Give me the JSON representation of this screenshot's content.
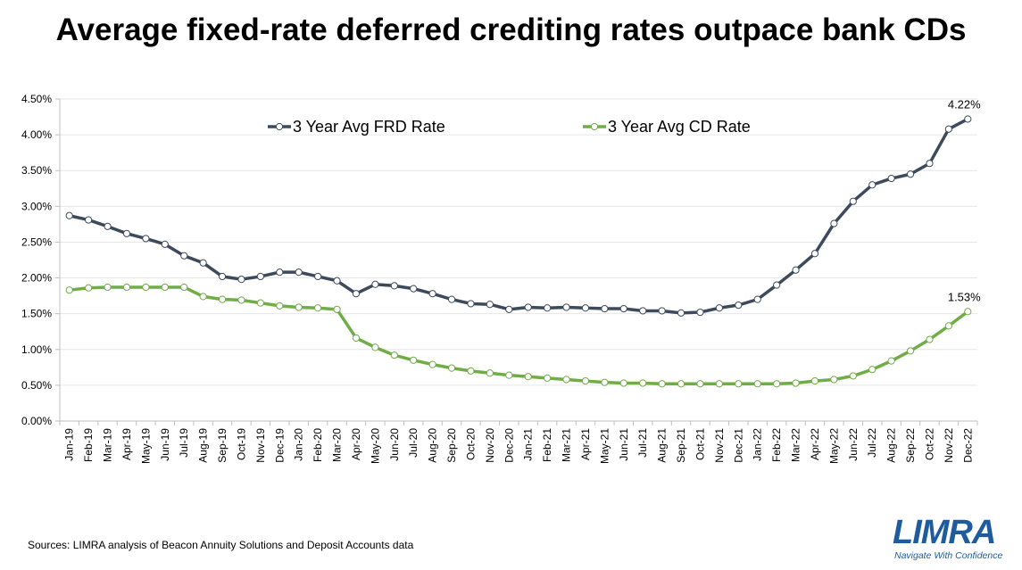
{
  "colors": {
    "frd": "#3d4a5c",
    "cd": "#70ad47",
    "grid": "#e6e6e6",
    "axis": "#bfbfbf",
    "brand": "#1f5c9e"
  },
  "footer": {
    "source": "Sources: LIMRA analysis of Beacon Annuity Solutions and Deposit Accounts data"
  },
  "logo": {
    "word": "LIMRA",
    "tagline": "Navigate With Confidence"
  },
  "chart_data": {
    "type": "line",
    "title": "Average fixed-rate deferred crediting rates outpace bank CDs",
    "xlabel": "",
    "ylabel": "",
    "ylim": [
      0,
      4.5
    ],
    "y_ticks": [
      "0.00%",
      "0.50%",
      "1.00%",
      "1.50%",
      "2.00%",
      "2.50%",
      "3.00%",
      "3.50%",
      "4.00%",
      "4.50%"
    ],
    "grid": true,
    "legend_position": "top",
    "categories": [
      "Jan-19",
      "Feb-19",
      "Mar-19",
      "Apr-19",
      "May-19",
      "Jun-19",
      "Jul-19",
      "Aug-19",
      "Sep-19",
      "Oct-19",
      "Nov-19",
      "Dec-19",
      "Jan-20",
      "Feb-20",
      "Mar-20",
      "Apr-20",
      "May-20",
      "Jun-20",
      "Jul-20",
      "Aug-20",
      "Sep-20",
      "Oct-20",
      "Nov-20",
      "Dec-20",
      "Jan-21",
      "Feb-21",
      "Mar-21",
      "Apr-21",
      "May-21",
      "Jun-21",
      "Jul-21",
      "Aug-21",
      "Sep-21",
      "Oct-21",
      "Nov-21",
      "Dec-21",
      "Jan-22",
      "Feb-22",
      "Mar-22",
      "Apr-22",
      "May-22",
      "Jun-22",
      "Jul-22",
      "Aug-22",
      "Sep-22",
      "Oct-22",
      "Nov-22",
      "Dec-22"
    ],
    "series": [
      {
        "name": "3 Year Avg FRD Rate",
        "values": [
          2.87,
          2.81,
          2.72,
          2.62,
          2.55,
          2.47,
          2.31,
          2.21,
          2.02,
          1.98,
          2.02,
          2.08,
          2.08,
          2.02,
          1.96,
          1.78,
          1.91,
          1.89,
          1.85,
          1.78,
          1.7,
          1.64,
          1.63,
          1.56,
          1.59,
          1.58,
          1.59,
          1.58,
          1.57,
          1.57,
          1.54,
          1.54,
          1.51,
          1.52,
          1.58,
          1.62,
          1.7,
          1.9,
          2.11,
          2.34,
          2.76,
          3.07,
          3.3,
          3.39,
          3.45,
          3.6,
          4.08,
          4.22
        ],
        "end_label": "4.22%"
      },
      {
        "name": "3 Year Avg CD Rate",
        "values": [
          1.83,
          1.86,
          1.87,
          1.87,
          1.87,
          1.87,
          1.87,
          1.74,
          1.7,
          1.69,
          1.65,
          1.61,
          1.59,
          1.58,
          1.56,
          1.16,
          1.03,
          0.92,
          0.85,
          0.79,
          0.74,
          0.7,
          0.67,
          0.64,
          0.62,
          0.6,
          0.58,
          0.56,
          0.54,
          0.53,
          0.53,
          0.52,
          0.52,
          0.52,
          0.52,
          0.52,
          0.52,
          0.52,
          0.53,
          0.56,
          0.58,
          0.63,
          0.72,
          0.84,
          0.98,
          1.14,
          1.33,
          1.53
        ],
        "end_label": "1.53%"
      }
    ]
  }
}
